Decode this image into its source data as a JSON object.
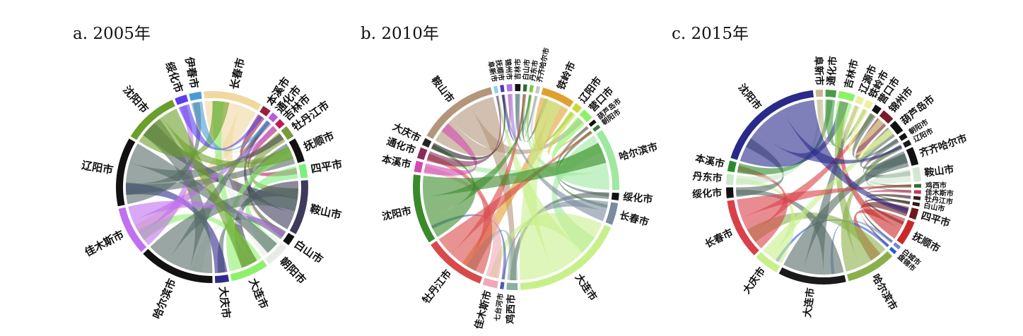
{
  "panels": [
    {
      "title": "a. 2005年",
      "segments": [
        {
          "label": "长春市",
          "color": "#f0d8a0",
          "span": 34
        },
        {
          "label": "本溪市",
          "color": "#9a1f3a",
          "span": 5
        },
        {
          "label": "通化市",
          "color": "#b35bd9",
          "span": 4
        },
        {
          "label": "吉林市",
          "color": "#c2185b",
          "span": 4
        },
        {
          "label": "牡丹江市",
          "color": "#7a9a3a",
          "span": 7
        },
        {
          "label": "抚顺市",
          "color": "#111111",
          "span": 14
        },
        {
          "label": "四平市",
          "color": "#7cf07c",
          "span": 8
        },
        {
          "label": "鞍山市",
          "color": "#3d3a5a",
          "span": 32
        },
        {
          "label": "白山市",
          "color": "#111111",
          "span": 6
        },
        {
          "label": "朝阳市",
          "color": "#e8ece8",
          "span": 14
        },
        {
          "label": "大连市",
          "color": "#8ef06a",
          "span": 22
        },
        {
          "label": "大庆市",
          "color": "#2e2a8a",
          "span": 8
        },
        {
          "label": "哈尔滨市",
          "color": "#111111",
          "span": 44
        },
        {
          "label": "佳木斯市",
          "color": "#c070f0",
          "span": 28
        },
        {
          "label": "辽阳市",
          "color": "#111111",
          "span": 40
        },
        {
          "label": "沈阳市",
          "color": "#6b9e2a",
          "span": 32
        },
        {
          "label": "绥化市",
          "color": "#5a3ff0",
          "span": 7
        },
        {
          "label": "伊春市",
          "color": "#4a9ad8",
          "span": 7
        }
      ]
    },
    {
      "title": "b. 2010年",
      "segments": [
        {
          "label": "鞍山市",
          "color": "#b3967a",
          "span": 44
        },
        {
          "label": "阜新市",
          "color": "#8ad0f0",
          "span": 2
        },
        {
          "label": "抚顺市",
          "color": "#4a3ab0",
          "span": 2
        },
        {
          "label": "锦州市",
          "color": "#b070e0",
          "span": 3
        },
        {
          "label": "吉林市",
          "color": "#111111",
          "span": 3
        },
        {
          "label": "白山市",
          "color": "#2e6a2e",
          "span": 2
        },
        {
          "label": "丹东市",
          "color": "#7cc84a",
          "span": 2
        },
        {
          "label": "齐齐哈尔市",
          "color": "#c8c8c8",
          "span": 2
        },
        {
          "label": "铁岭市",
          "color": "#e0a030",
          "span": 18
        },
        {
          "label": "辽阳市",
          "color": "#c8d838",
          "span": 4
        },
        {
          "label": "营口市",
          "color": "#8ef06a",
          "span": 6
        },
        {
          "label": "葫芦岛市",
          "color": "#111111",
          "span": 2
        },
        {
          "label": "朝阳市",
          "color": "#3a7a3a",
          "span": 2
        },
        {
          "label": "哈尔滨市",
          "color": "#9ee8a0",
          "span": 34
        },
        {
          "label": "绥化市",
          "color": "#111111",
          "span": 4
        },
        {
          "label": "长春市",
          "color": "#7a8aa0",
          "span": 12
        },
        {
          "label": "大连市",
          "color": "#c8f08a",
          "span": 62
        },
        {
          "label": "鸡西市",
          "color": "#8ab0a0",
          "span": 6
        },
        {
          "label": "七台河市",
          "color": "#4a5ab0",
          "span": 2
        },
        {
          "label": "佳木斯市",
          "color": "#f0a8b8",
          "span": 8
        },
        {
          "label": "牡丹江市",
          "color": "#d84a4a",
          "span": 34
        },
        {
          "label": "沈阳市",
          "color": "#3a8a2a",
          "span": 38
        },
        {
          "label": "本溪市",
          "color": "#d04ab0",
          "span": 6
        },
        {
          "label": "通化市",
          "color": "#8a2a5a",
          "span": 6
        },
        {
          "label": "大庆市",
          "color": "#222222",
          "span": 4
        }
      ]
    },
    {
      "title": "c. 2015年",
      "segments": [
        {
          "label": "锦州市",
          "color": "#7a1a2a",
          "span": 7
        },
        {
          "label": "葫芦岛市",
          "color": "#111111",
          "span": 7
        },
        {
          "label": "朝阳市",
          "color": "#111111",
          "span": 3
        },
        {
          "label": "辽阳市",
          "color": "#1a1a1a",
          "span": 3
        },
        {
          "label": "齐齐哈尔市",
          "color": "#111111",
          "span": 10
        },
        {
          "label": "鞍山市",
          "color": "#d0e8d0",
          "span": 8
        },
        {
          "label": "鸡西市",
          "color": "#3a6a2a",
          "span": 2
        },
        {
          "label": "佳木斯市",
          "color": "#b83a5a",
          "span": 2
        },
        {
          "label": "牡丹江市",
          "color": "#3a1a1a",
          "span": 2
        },
        {
          "label": "白山市",
          "color": "#2a1a1a",
          "span": 2
        },
        {
          "label": "四平市",
          "color": "#6a1a1a",
          "span": 6
        },
        {
          "label": "抚顺市",
          "color": "#c82a2a",
          "span": 14
        },
        {
          "label": "白城市",
          "color": "#6a8ad0",
          "span": 2
        },
        {
          "label": "盘锦市",
          "color": "#2a5ad8",
          "span": 2
        },
        {
          "label": "哈尔滨市",
          "color": "#8ab04a",
          "span": 28
        },
        {
          "label": "大连市",
          "color": "#1a1a1a",
          "span": 38
        },
        {
          "label": "大庆市",
          "color": "#c8f08a",
          "span": 14
        },
        {
          "label": "长春市",
          "color": "#d8404a",
          "span": 34
        },
        {
          "label": "绥化市",
          "color": "#111111",
          "span": 6
        },
        {
          "label": "丹东市",
          "color": "#c8e8c8",
          "span": 6
        },
        {
          "label": "本溪市",
          "color": "#2a8a2a",
          "span": 6
        },
        {
          "label": "沈阳市",
          "color": "#2a2a8a",
          "span": 62
        },
        {
          "label": "阜新市",
          "color": "#c8b890",
          "span": 4
        },
        {
          "label": "通化市",
          "color": "#4a9a4a",
          "span": 6
        },
        {
          "label": "吉林市",
          "color": "#8ef06a",
          "span": 9
        },
        {
          "label": "辽源市",
          "color": "#e8f0a0",
          "span": 4
        },
        {
          "label": "铁岭市",
          "color": "#f0f0a0",
          "span": 4
        },
        {
          "label": "营口市",
          "color": "#111111",
          "span": 4
        }
      ]
    }
  ]
}
